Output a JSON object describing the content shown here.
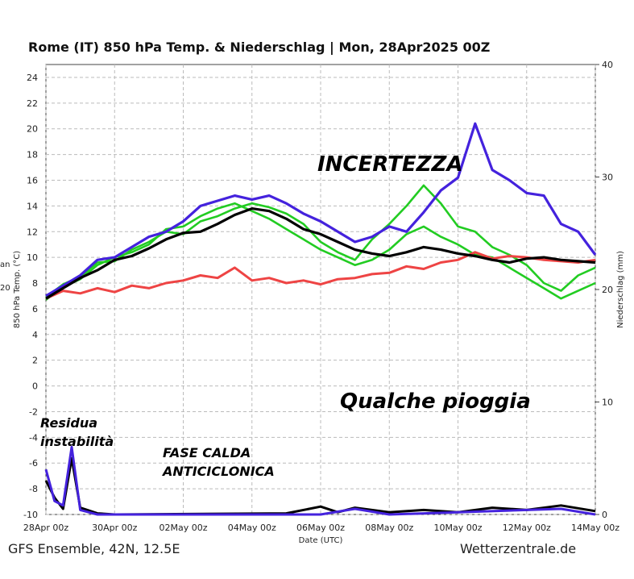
{
  "chart_data": {
    "type": "line",
    "title": "Rome  (IT)  850 hPa Temp. & Niederschlag | Mon, 28Apr2025 00Z",
    "ylabel_left": "850 hPa Temp. (°C)",
    "ylabel_right": "Niederschlag (mm)",
    "xlabel": "Date (UTC)",
    "left_edge_fragments": [
      "an",
      "20"
    ],
    "ylim_left": [
      -10,
      25
    ],
    "ylim_right": [
      0,
      40
    ],
    "yticks_left": [
      "24",
      "22",
      "20",
      "18",
      "16",
      "14",
      "12",
      "10",
      "8",
      "6",
      "4",
      "2",
      "0",
      "-2",
      "-4",
      "-6",
      "-8",
      "-10"
    ],
    "yticks_right": [
      "40",
      "30",
      "20",
      "10",
      "0"
    ],
    "xticks": [
      "28Apr 00z",
      "30Apr 00z",
      "02May 00z",
      "04May 00z",
      "06May 00z",
      "08May 00z",
      "10May 00z",
      "12May 00z",
      "14May 00z"
    ],
    "x_range_days": [
      0,
      16
    ],
    "footer_left": "GFS Ensemble, 42N, 12.5E",
    "footer_right": "Wetterzentrale.de",
    "annotations": {
      "incertezza": "INCERTEZZA",
      "pioggia": "Qualche pioggia",
      "residua_1": "Residua",
      "residua_2": "instabilità",
      "fase_1": "FASE CALDA",
      "fase_2": "ANTICICLONICA"
    },
    "grid": true,
    "series": [
      {
        "role": "mean",
        "color": "#000000",
        "values": [
          [
            0,
            6.8
          ],
          [
            0.5,
            7.6
          ],
          [
            1,
            8.4
          ],
          [
            1.5,
            9.0
          ],
          [
            2,
            9.8
          ],
          [
            2.5,
            10.1
          ],
          [
            3,
            10.7
          ],
          [
            3.5,
            11.4
          ],
          [
            4,
            11.9
          ],
          [
            4.5,
            12.0
          ],
          [
            5,
            12.6
          ],
          [
            5.5,
            13.3
          ],
          [
            6,
            13.8
          ],
          [
            6.5,
            13.6
          ],
          [
            7,
            13.0
          ],
          [
            7.5,
            12.2
          ],
          [
            8,
            11.8
          ],
          [
            8.5,
            11.2
          ],
          [
            9,
            10.6
          ],
          [
            9.5,
            10.3
          ],
          [
            10,
            10.1
          ],
          [
            10.5,
            10.4
          ],
          [
            11,
            10.8
          ],
          [
            11.5,
            10.6
          ],
          [
            12,
            10.3
          ],
          [
            12.5,
            10.1
          ],
          [
            13,
            9.8
          ],
          [
            13.5,
            9.6
          ],
          [
            14,
            9.9
          ],
          [
            14.5,
            10.0
          ],
          [
            15,
            9.8
          ],
          [
            15.5,
            9.7
          ],
          [
            16,
            9.6
          ]
        ]
      },
      {
        "role": "operational",
        "color": "#4422dd",
        "values": [
          [
            0,
            7.0
          ],
          [
            0.5,
            7.8
          ],
          [
            1,
            8.6
          ],
          [
            1.5,
            9.8
          ],
          [
            2,
            10.0
          ],
          [
            2.5,
            10.8
          ],
          [
            3,
            11.6
          ],
          [
            3.5,
            12.0
          ],
          [
            4,
            12.8
          ],
          [
            4.5,
            14.0
          ],
          [
            5,
            14.4
          ],
          [
            5.5,
            14.8
          ],
          [
            6,
            14.5
          ],
          [
            6.5,
            14.8
          ],
          [
            7,
            14.2
          ],
          [
            7.5,
            13.4
          ],
          [
            8,
            12.8
          ],
          [
            8.5,
            12.0
          ],
          [
            9,
            11.2
          ],
          [
            9.5,
            11.6
          ],
          [
            10,
            12.4
          ],
          [
            10.5,
            12.0
          ],
          [
            11,
            13.5
          ],
          [
            11.5,
            15.2
          ],
          [
            12,
            16.2
          ],
          [
            12.5,
            20.4
          ],
          [
            13,
            16.8
          ],
          [
            13.5,
            16.0
          ],
          [
            14,
            15.0
          ],
          [
            14.5,
            14.8
          ],
          [
            15,
            12.6
          ],
          [
            15.5,
            12.0
          ],
          [
            16,
            10.2
          ]
        ]
      },
      {
        "role": "control",
        "color": "#ee4444",
        "values": [
          [
            0,
            6.8
          ],
          [
            0.5,
            7.4
          ],
          [
            1,
            7.2
          ],
          [
            1.5,
            7.6
          ],
          [
            2,
            7.3
          ],
          [
            2.5,
            7.8
          ],
          [
            3,
            7.6
          ],
          [
            3.5,
            8.0
          ],
          [
            4,
            8.2
          ],
          [
            4.5,
            8.6
          ],
          [
            5,
            8.4
          ],
          [
            5.5,
            9.2
          ],
          [
            6,
            8.2
          ],
          [
            6.5,
            8.4
          ],
          [
            7,
            8.0
          ],
          [
            7.5,
            8.2
          ],
          [
            8,
            7.9
          ],
          [
            8.5,
            8.3
          ],
          [
            9,
            8.4
          ],
          [
            9.5,
            8.7
          ],
          [
            10,
            8.8
          ],
          [
            10.5,
            9.3
          ],
          [
            11,
            9.1
          ],
          [
            11.5,
            9.6
          ],
          [
            12,
            9.8
          ],
          [
            12.5,
            10.4
          ],
          [
            13,
            9.9
          ],
          [
            13.5,
            10.1
          ],
          [
            14,
            10.0
          ],
          [
            14.5,
            9.8
          ],
          [
            15,
            9.7
          ],
          [
            15.5,
            9.6
          ],
          [
            16,
            9.8
          ]
        ]
      },
      {
        "role": "member",
        "color": "#22cc22",
        "values": [
          [
            0,
            6.9
          ],
          [
            0.5,
            7.9
          ],
          [
            1,
            8.5
          ],
          [
            1.5,
            9.6
          ],
          [
            2,
            9.7
          ],
          [
            2.5,
            10.6
          ],
          [
            3,
            11.2
          ],
          [
            3.5,
            12.0
          ],
          [
            4,
            11.8
          ],
          [
            4.5,
            12.8
          ],
          [
            5,
            13.2
          ],
          [
            5.5,
            13.8
          ],
          [
            6,
            14.2
          ],
          [
            6.5,
            13.9
          ],
          [
            7,
            13.4
          ],
          [
            7.5,
            12.6
          ],
          [
            8,
            11.2
          ],
          [
            8.5,
            10.4
          ],
          [
            9,
            9.8
          ],
          [
            9.5,
            11.4
          ],
          [
            10,
            12.6
          ],
          [
            10.5,
            14.0
          ],
          [
            11,
            15.6
          ],
          [
            11.5,
            14.2
          ],
          [
            12,
            12.4
          ],
          [
            12.5,
            12.0
          ],
          [
            13,
            10.8
          ],
          [
            13.5,
            10.2
          ],
          [
            14,
            9.4
          ],
          [
            14.5,
            8.0
          ],
          [
            15,
            7.4
          ],
          [
            15.5,
            8.6
          ],
          [
            16,
            9.2
          ]
        ]
      },
      {
        "role": "member",
        "color": "#22cc22",
        "values": [
          [
            0,
            6.7
          ],
          [
            0.5,
            7.7
          ],
          [
            1,
            8.3
          ],
          [
            1.5,
            9.4
          ],
          [
            2,
            10.0
          ],
          [
            2.5,
            10.4
          ],
          [
            3,
            11.0
          ],
          [
            3.5,
            12.2
          ],
          [
            4,
            12.4
          ],
          [
            4.5,
            13.2
          ],
          [
            5,
            13.8
          ],
          [
            5.5,
            14.2
          ],
          [
            6,
            13.6
          ],
          [
            6.5,
            13.0
          ],
          [
            7,
            12.2
          ],
          [
            7.5,
            11.4
          ],
          [
            8,
            10.6
          ],
          [
            8.5,
            10.0
          ],
          [
            9,
            9.4
          ],
          [
            9.5,
            9.8
          ],
          [
            10,
            10.6
          ],
          [
            10.5,
            11.8
          ],
          [
            11,
            12.4
          ],
          [
            11.5,
            11.6
          ],
          [
            12,
            11.0
          ],
          [
            12.5,
            10.2
          ],
          [
            13,
            10.0
          ],
          [
            13.5,
            9.2
          ],
          [
            14,
            8.4
          ],
          [
            14.5,
            7.6
          ],
          [
            15,
            6.8
          ],
          [
            15.5,
            7.4
          ],
          [
            16,
            8.0
          ]
        ]
      }
    ],
    "precip_series": [
      {
        "role": "mean",
        "color": "#000000",
        "values": [
          [
            0,
            3
          ],
          [
            0.25,
            1.5
          ],
          [
            0.5,
            0.5
          ],
          [
            0.75,
            5
          ],
          [
            1,
            0.6
          ],
          [
            1.5,
            0.1
          ],
          [
            2,
            0
          ],
          [
            7,
            0.1
          ],
          [
            8,
            0.7
          ],
          [
            8.5,
            0.2
          ],
          [
            9,
            0.6
          ],
          [
            10,
            0.2
          ],
          [
            11,
            0.4
          ],
          [
            12,
            0.2
          ],
          [
            13,
            0.6
          ],
          [
            14,
            0.4
          ],
          [
            15,
            0.8
          ],
          [
            16,
            0.3
          ]
        ]
      },
      {
        "role": "operational",
        "color": "#4422dd",
        "values": [
          [
            0,
            4
          ],
          [
            0.25,
            1.2
          ],
          [
            0.5,
            0.8
          ],
          [
            0.75,
            6
          ],
          [
            1,
            0.4
          ],
          [
            1.5,
            0
          ],
          [
            2,
            0
          ],
          [
            8,
            0
          ],
          [
            9,
            0.5
          ],
          [
            10,
            0
          ],
          [
            15,
            0.5
          ],
          [
            16,
            0
          ]
        ]
      }
    ]
  }
}
